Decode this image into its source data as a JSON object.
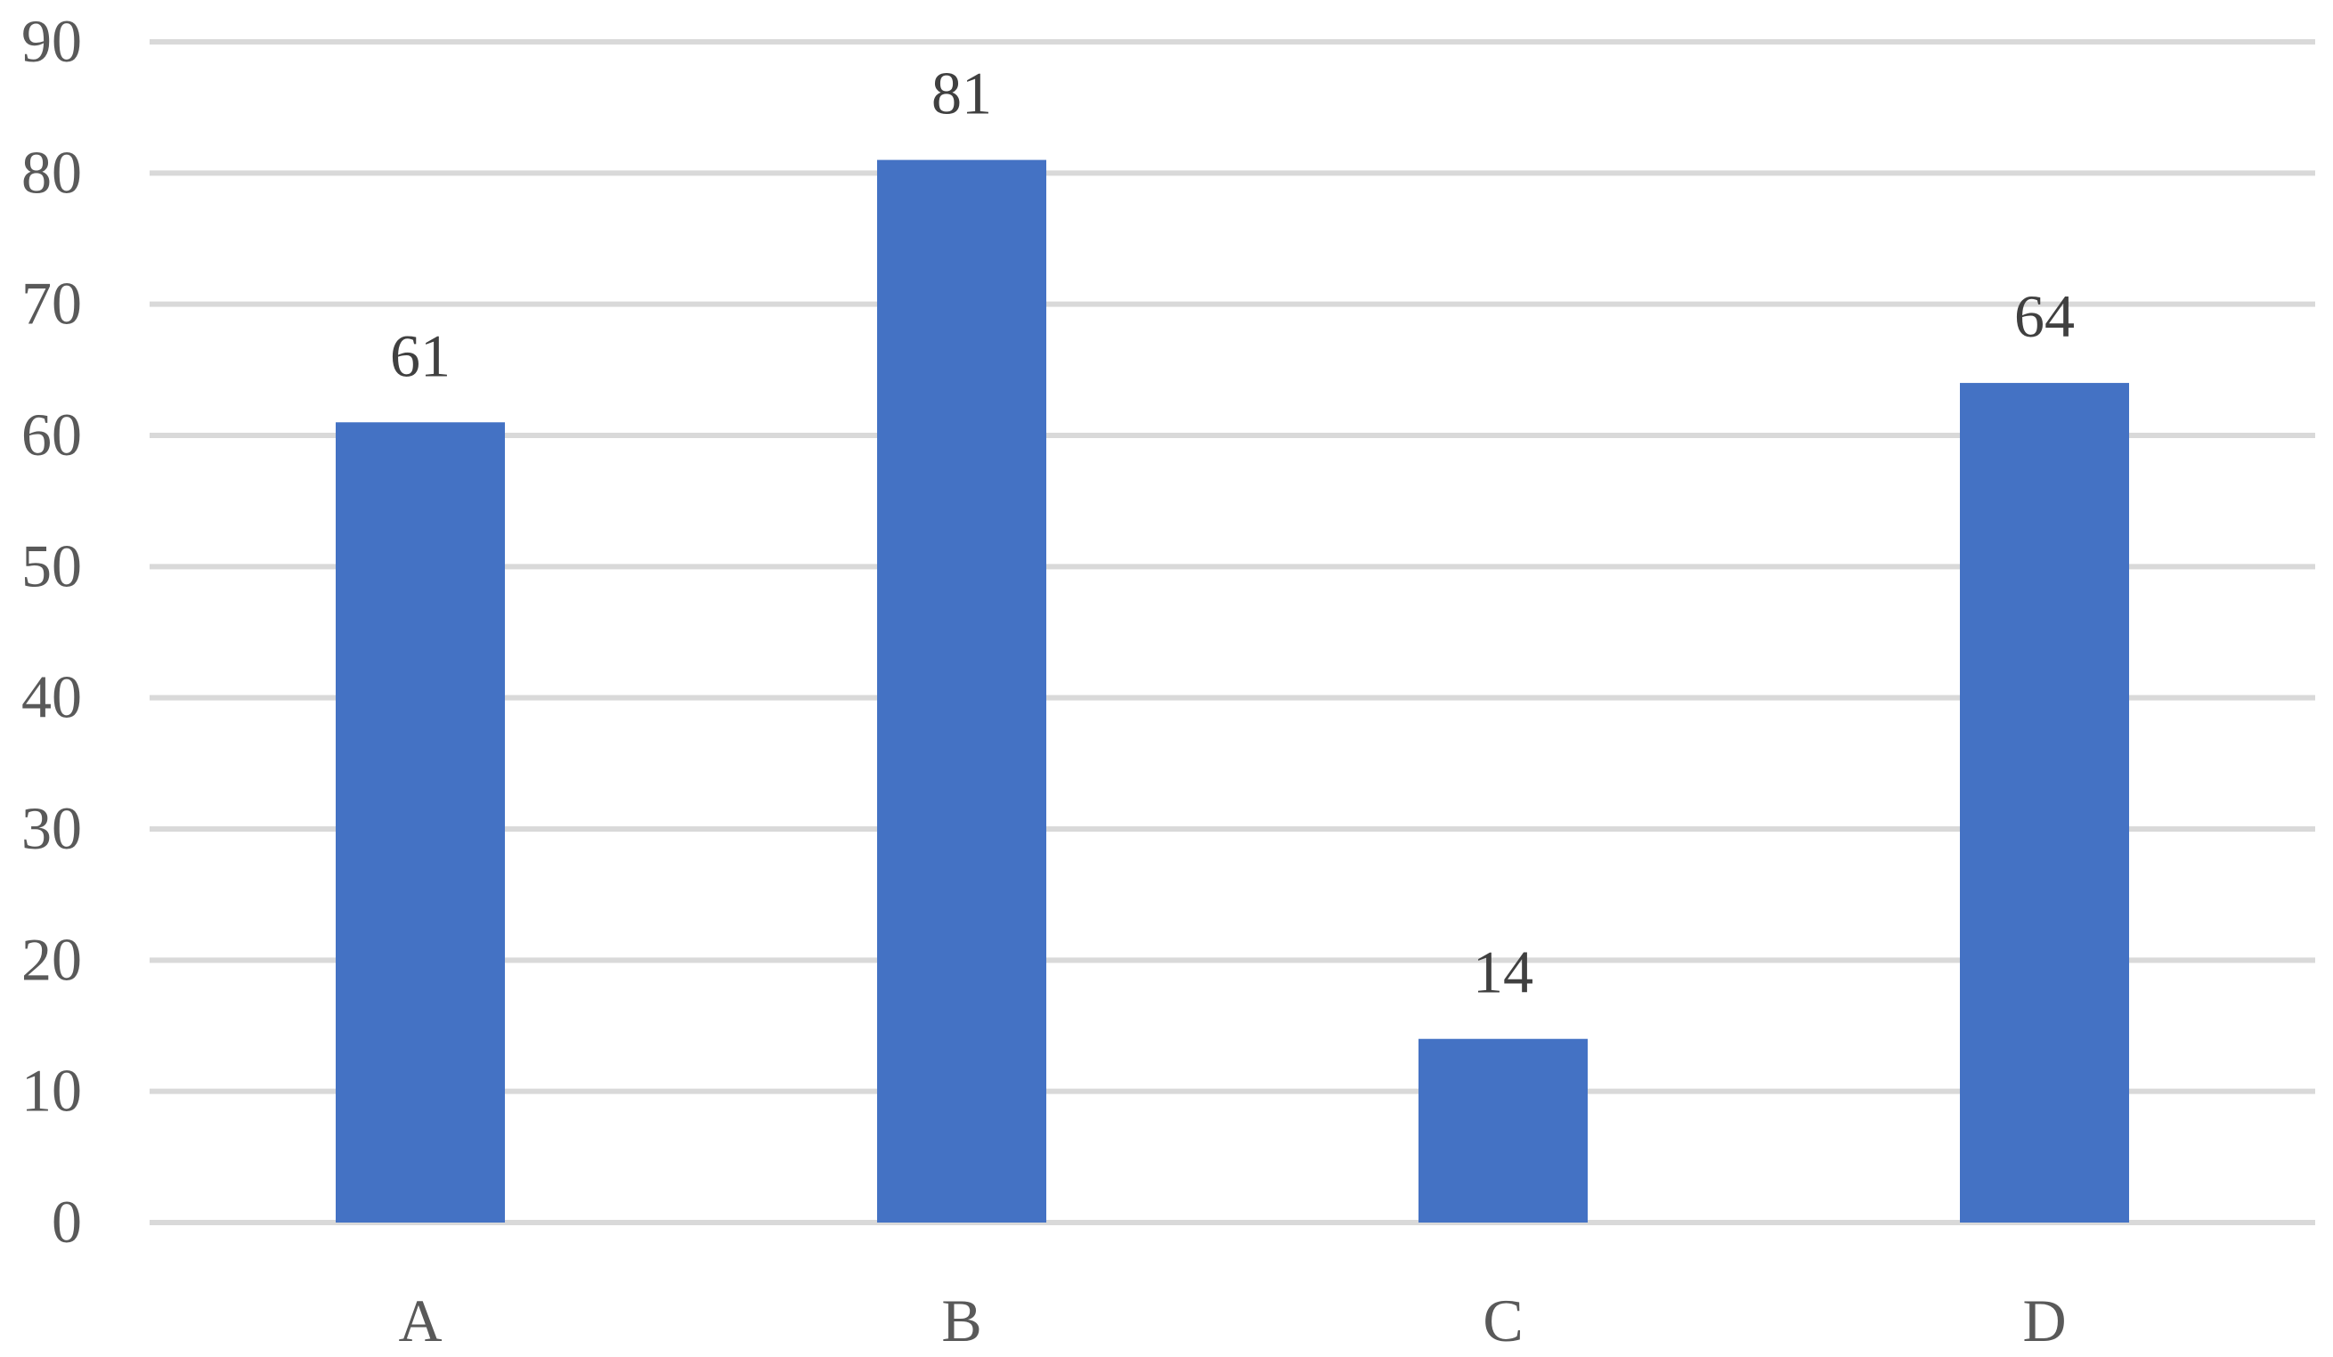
{
  "chart_data": {
    "type": "bar",
    "categories": [
      "A",
      "B",
      "C",
      "D"
    ],
    "values": [
      61,
      81,
      14,
      64
    ],
    "title": "",
    "xlabel": "",
    "ylabel": "",
    "ylim": [
      0,
      90
    ],
    "yticks": [
      0,
      10,
      20,
      30,
      40,
      50,
      60,
      70,
      80,
      90
    ],
    "grid": true,
    "legend": "none",
    "data_labels": true,
    "colors": {
      "bar": "#4472c4",
      "grid": "#d9d9d9",
      "tick_text": "#595959",
      "label_text": "#404040"
    }
  }
}
